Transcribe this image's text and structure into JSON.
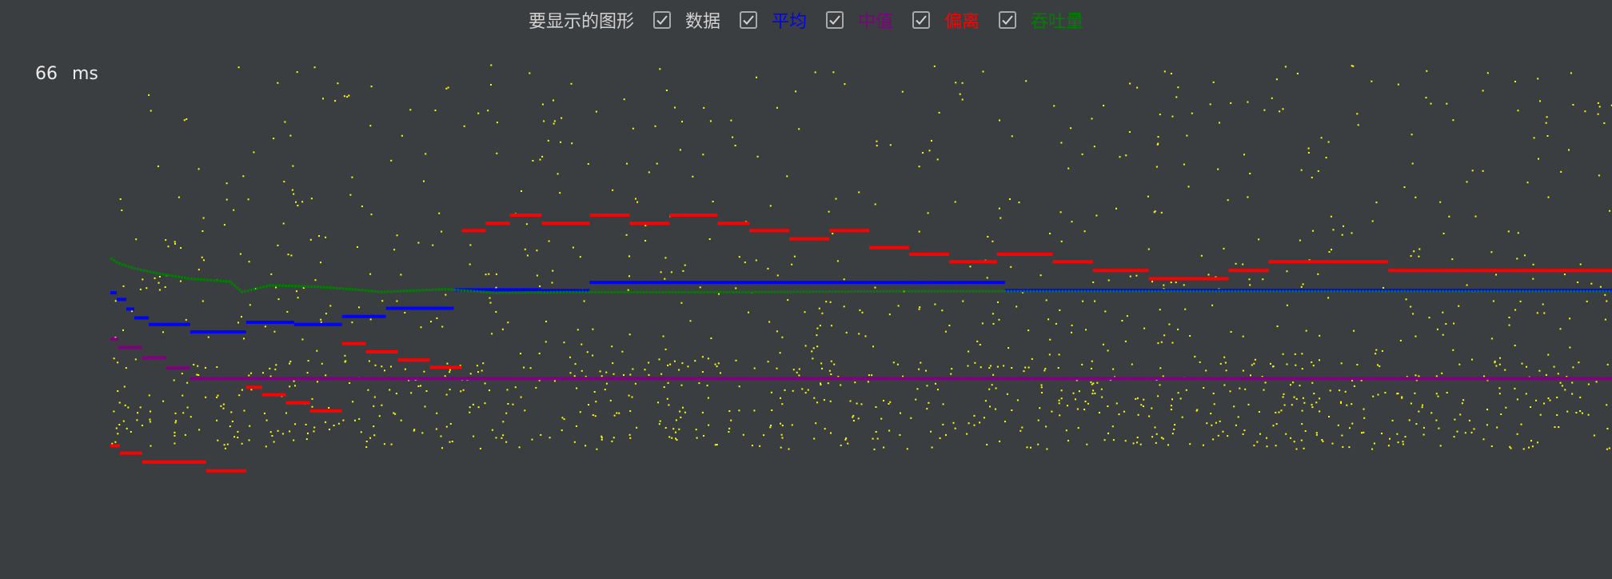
{
  "legend": {
    "prompt": "要显示的图形",
    "items": [
      {
        "label": "数据",
        "color": "#d2d2d2",
        "checked": true
      },
      {
        "label": "平均",
        "color": "#0000ff",
        "checked": true
      },
      {
        "label": "中值",
        "color": "#800080",
        "checked": true
      },
      {
        "label": "偏离",
        "color": "#ff0000",
        "checked": true
      },
      {
        "label": "吞吐量",
        "color": "#008000",
        "checked": true
      }
    ]
  },
  "y_axis": {
    "max_value": "66",
    "unit": "ms"
  },
  "colors": {
    "background": "#3b3e41",
    "data": "#ffff00",
    "average": "#0000ff",
    "median": "#800080",
    "deviation": "#ff0000",
    "throughput": "#008000"
  },
  "chart_data": {
    "type": "scatter",
    "x_range": [
      0,
      1880
    ],
    "y_range": [
      0,
      66
    ],
    "y_unit": "ms",
    "x_label": "",
    "grid": false,
    "legend_placement": "top-center",
    "series": [
      {
        "name": "数据",
        "style": "points",
        "note": "dense scatter of individual samples spread roughly between 0 and 64 ms"
      },
      {
        "name": "平均",
        "style": "step",
        "points": [
          [
            0,
            33.1
          ],
          [
            8,
            32.2
          ],
          [
            20,
            30.9
          ],
          [
            30,
            29.7
          ],
          [
            48,
            28.8
          ],
          [
            100,
            27.8
          ],
          [
            170,
            29.1
          ],
          [
            230,
            28.8
          ],
          [
            290,
            29.9
          ],
          [
            345,
            31.0
          ],
          [
            430,
            33.5
          ],
          [
            540,
            33.4
          ],
          [
            600,
            34.5
          ],
          [
            700,
            34.5
          ],
          [
            850,
            34.5
          ],
          [
            900,
            34.5
          ],
          [
            1000,
            34.5
          ],
          [
            1030,
            34.5
          ],
          [
            1120,
            33.4
          ],
          [
            1300,
            33.4
          ],
          [
            1420,
            33.4
          ],
          [
            1540,
            33.4
          ],
          [
            1620,
            33.4
          ],
          [
            1700,
            33.4
          ],
          [
            1880,
            33.4
          ]
        ]
      },
      {
        "name": "中值",
        "style": "step",
        "points": [
          [
            0,
            26.8
          ],
          [
            10,
            25.7
          ],
          [
            40,
            24.3
          ],
          [
            70,
            22.9
          ],
          [
            100,
            21.5
          ],
          [
            1880,
            21.5
          ]
        ]
      },
      {
        "name": "偏离",
        "style": "step",
        "points": [
          [
            0,
            12.4
          ],
          [
            12,
            11.4
          ],
          [
            40,
            10.2
          ],
          [
            120,
            9.0
          ],
          [
            170,
            20.3
          ],
          [
            190,
            19.3
          ],
          [
            220,
            18.2
          ],
          [
            250,
            17.1
          ],
          [
            290,
            26.2
          ],
          [
            320,
            25.1
          ],
          [
            360,
            24.0
          ],
          [
            400,
            23.0
          ],
          [
            440,
            41.5
          ],
          [
            470,
            42.5
          ],
          [
            500,
            43.6
          ],
          [
            540,
            42.5
          ],
          [
            600,
            43.6
          ],
          [
            650,
            42.5
          ],
          [
            700,
            43.6
          ],
          [
            760,
            42.5
          ],
          [
            800,
            41.5
          ],
          [
            850,
            40.4
          ],
          [
            900,
            41.5
          ],
          [
            950,
            39.2
          ],
          [
            1000,
            38.3
          ],
          [
            1050,
            37.3
          ],
          [
            1110,
            38.3
          ],
          [
            1180,
            37.3
          ],
          [
            1230,
            36.1
          ],
          [
            1300,
            35.0
          ],
          [
            1400,
            36.1
          ],
          [
            1450,
            37.3
          ],
          [
            1520,
            37.3
          ],
          [
            1600,
            36.1
          ],
          [
            1700,
            36.1
          ],
          [
            1800,
            36.1
          ],
          [
            1880,
            36.1
          ]
        ]
      },
      {
        "name": "吞吐量",
        "style": "line",
        "points": [
          [
            0,
            37.8
          ],
          [
            10,
            37.1
          ],
          [
            30,
            36.4
          ],
          [
            60,
            35.7
          ],
          [
            100,
            35.0
          ],
          [
            150,
            34.6
          ],
          [
            165,
            33.2
          ],
          [
            200,
            34.1
          ],
          [
            260,
            33.9
          ],
          [
            300,
            33.6
          ],
          [
            340,
            33.2
          ],
          [
            420,
            33.6
          ],
          [
            480,
            33.1
          ],
          [
            600,
            33.2
          ],
          [
            800,
            33.2
          ],
          [
            1000,
            33.3
          ],
          [
            1200,
            33.3
          ],
          [
            1400,
            33.3
          ],
          [
            1600,
            33.3
          ],
          [
            1880,
            33.3
          ]
        ]
      }
    ]
  }
}
